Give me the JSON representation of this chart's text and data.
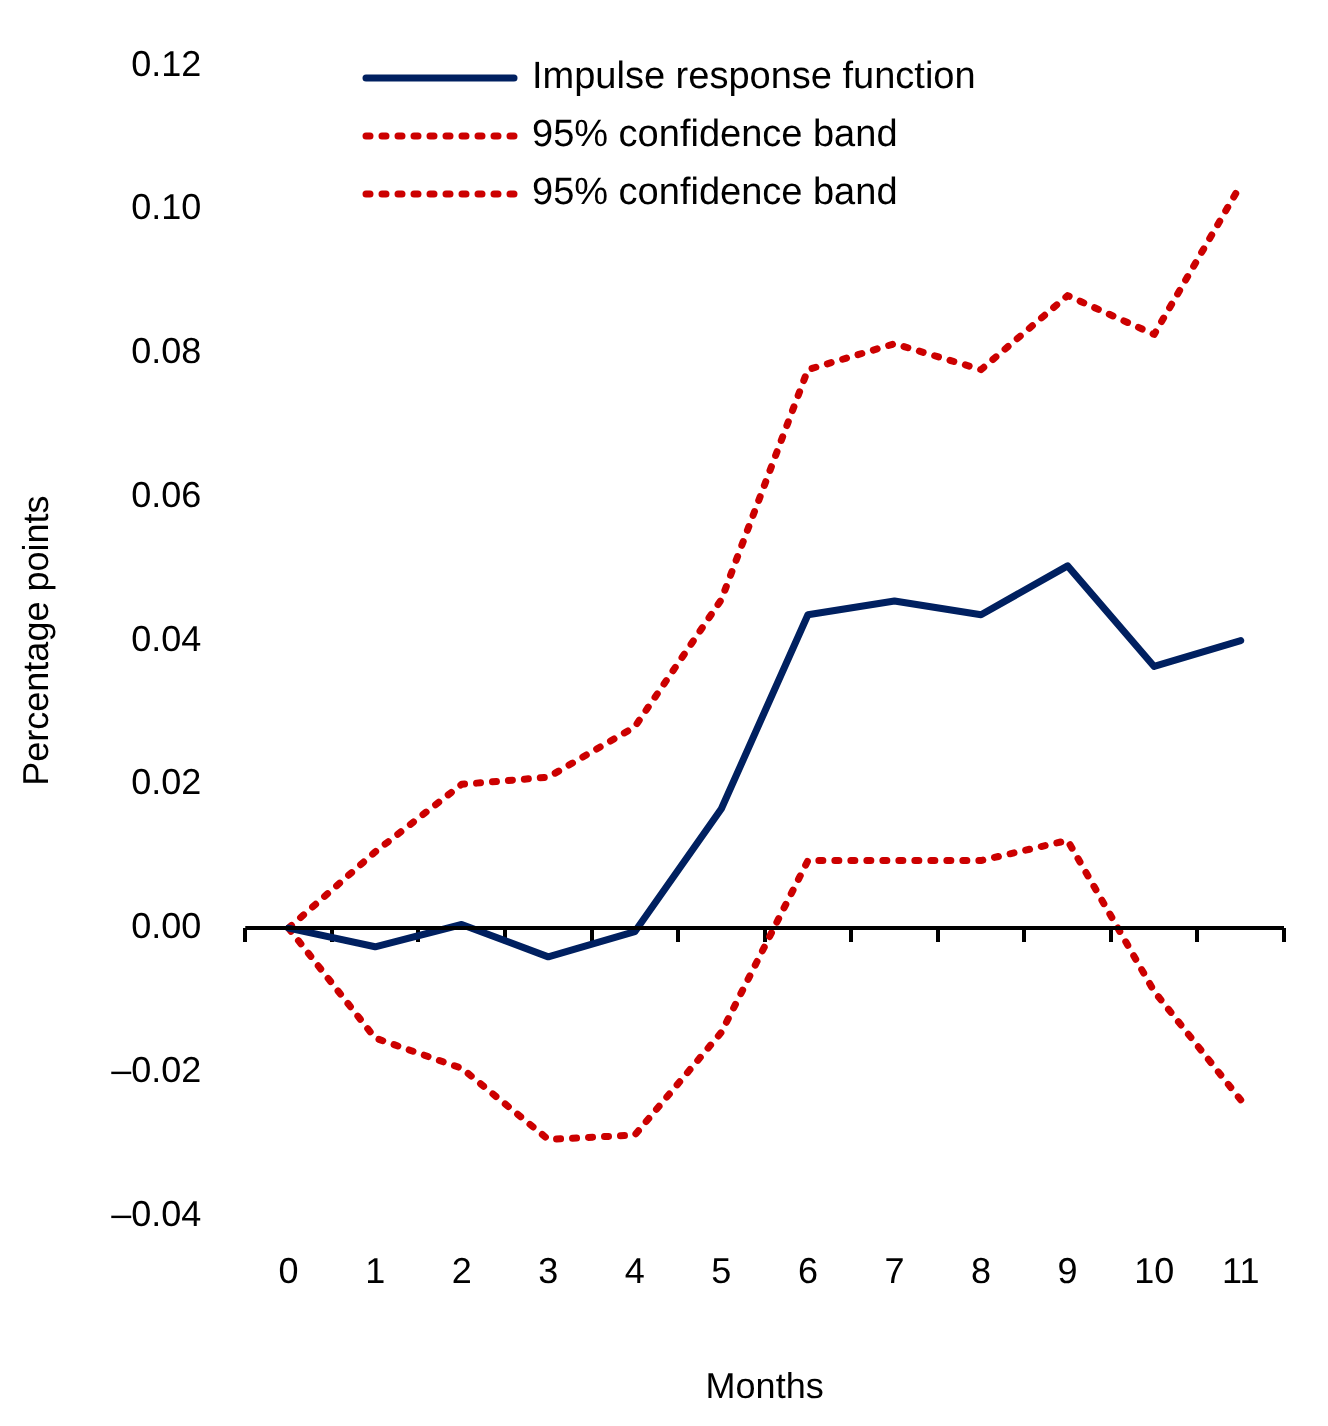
{
  "chart_data": {
    "type": "line",
    "xlabel": "Months",
    "ylabel": "Percentage points",
    "categories": [
      "0",
      "1",
      "2",
      "3",
      "4",
      "5",
      "6",
      "7",
      "8",
      "9",
      "10",
      "11"
    ],
    "series": [
      {
        "name": "Impulse response function",
        "color": "#002060",
        "line_style": "solid",
        "values": [
          0,
          -0.0026,
          0.0005,
          -0.004,
          -0.0005,
          0.0166,
          0.0436,
          0.0455,
          0.0436,
          0.0504,
          0.0364,
          0.04
        ]
      },
      {
        "name": "95% confidence band",
        "color": "#cc0000",
        "line_style": "dotted",
        "values": [
          0,
          0.0106,
          0.02,
          0.021,
          0.028,
          0.0457,
          0.0777,
          0.0813,
          0.0777,
          0.088,
          0.0826,
          0.1034
        ]
      },
      {
        "name": "95% confidence band",
        "color": "#cc0000",
        "line_style": "dotted",
        "values": [
          0,
          -0.0153,
          -0.0195,
          -0.0294,
          -0.0288,
          -0.0145,
          0.0094,
          0.0094,
          0.0094,
          0.0122,
          -0.0088,
          -0.0239
        ]
      }
    ],
    "ylim": [
      -0.04,
      0.12
    ],
    "yticks": [
      {
        "value": -0.04,
        "label": "–0.04"
      },
      {
        "value": -0.02,
        "label": "–0.02"
      },
      {
        "value": 0,
        "label": "0.00"
      },
      {
        "value": 0.02,
        "label": "0.02"
      },
      {
        "value": 0.04,
        "label": "0.04"
      },
      {
        "value": 0.06,
        "label": "0.06"
      },
      {
        "value": 0.08,
        "label": "0.08"
      },
      {
        "value": 0.1,
        "label": "0.10"
      },
      {
        "value": 0.12,
        "label": "0.12"
      }
    ],
    "ref_lines": [
      {
        "axis": "y",
        "value": 0,
        "color": "#000000"
      }
    ],
    "grid": false,
    "marker": "none",
    "legend": "top left"
  }
}
